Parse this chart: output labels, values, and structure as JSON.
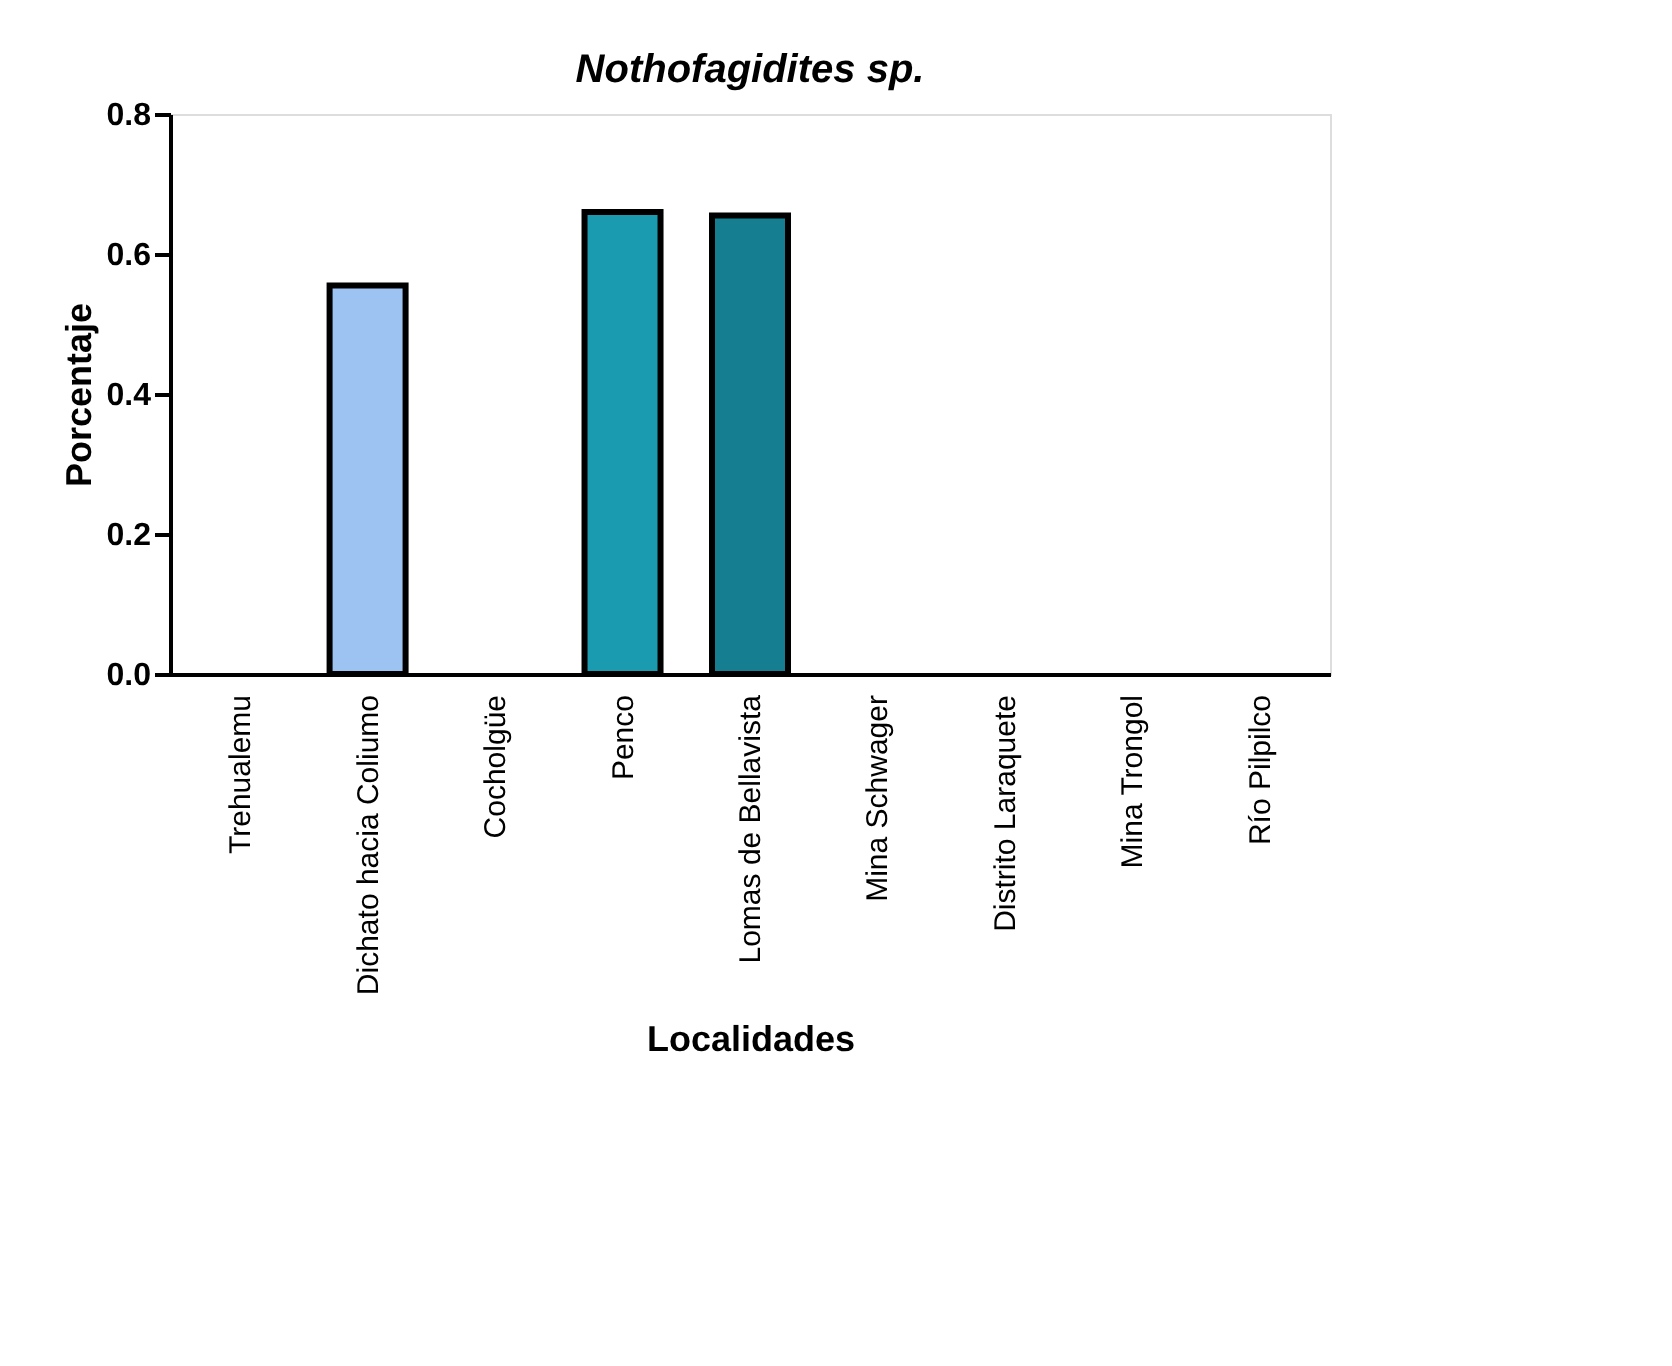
{
  "chart_data": {
    "type": "bar",
    "title": "Nothofagidites sp.",
    "xlabel": "Localidades",
    "ylabel": "Porcentaje",
    "categories": [
      "Trehualemu",
      "Dichato hacia Coliumo",
      "Cocholgüe",
      "Penco",
      "Lomas de Bellavista",
      "Mina Schwager",
      "Distrito Laraquete",
      "Mina Trongol",
      "Río Pilpilco"
    ],
    "values": [
      null,
      0.555,
      null,
      0.66,
      0.655,
      null,
      null,
      null,
      null
    ],
    "colors": [
      "#9cc3f2",
      "#9cc3f2",
      "#1a9bb0",
      "#1a9bb0",
      "#157f91",
      "#157f91",
      "#157f91",
      "#157f91",
      "#157f91"
    ],
    "ylim": [
      0,
      0.8
    ],
    "yticks": [
      {
        "value": 0,
        "label": "0.0"
      },
      0.2,
      0.4,
      0.6,
      0.8
    ],
    "grid": false
  }
}
